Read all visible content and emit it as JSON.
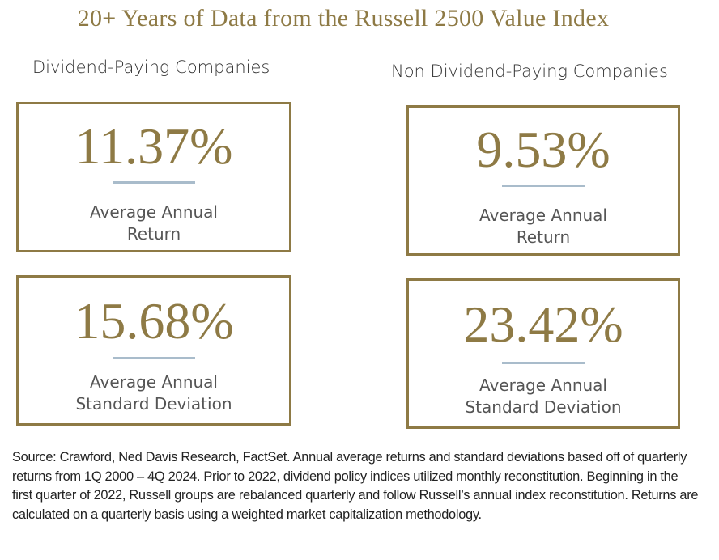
{
  "title": "20+ Years of Data from the Russell 2500 Value Index",
  "columns": {
    "left": {
      "heading": "Dividend-Paying Companies",
      "return": {
        "value": "11.37%",
        "label_line1": "Average Annual",
        "label_line2": "Return"
      },
      "deviation": {
        "value": "15.68%",
        "label_line1": "Average Annual",
        "label_line2": "Standard Deviation"
      }
    },
    "right": {
      "heading": "Non Dividend-Paying Companies",
      "return": {
        "value": "9.53%",
        "label_line1": "Average Annual",
        "label_line2": "Return"
      },
      "deviation": {
        "value": "23.42%",
        "label_line1": "Average Annual",
        "label_line2": "Standard Deviation"
      }
    }
  },
  "source_note": "Source: Crawford, Ned Davis Research, FactSet. Annual average returns and standard deviations based off of quarterly returns from 1Q 2000 – 4Q 2024. Prior to 2022, dividend policy indices utilized monthly reconstitution. Beginning in the first quarter of 2022, Russell groups are rebalanced quarterly and follow Russell’s annual index reconstitution. Returns are calculated on a quarterly basis using a weighted market capitalization methodology.",
  "colors": {
    "gold": "#8e7a45",
    "rule_blue": "#a9bccb",
    "text_gray": "#555555"
  }
}
